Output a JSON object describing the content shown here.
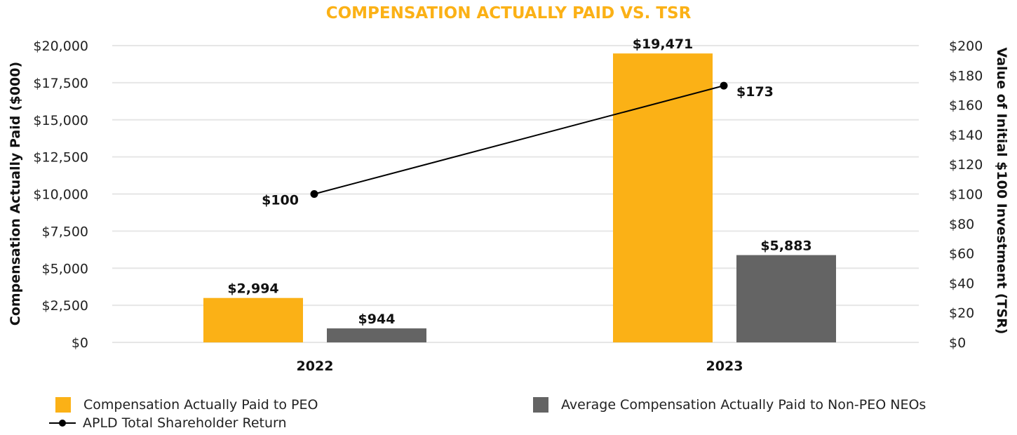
{
  "chart_data": {
    "type": "bar",
    "title": "COMPENSATION ACTUALLY PAID VS. TSR",
    "categories": [
      "2022",
      "2023"
    ],
    "ylabel": "Compensation Actually Paid ($000)",
    "y2label": "Value of Initial $100 Investment (TSR)",
    "ylim": [
      0,
      20000
    ],
    "y2lim": [
      0,
      200
    ],
    "yticks": [
      "$0",
      "$2,500",
      "$5,000",
      "$7,500",
      "$10,000",
      "$12,500",
      "$15,000",
      "$17,500",
      "$20,000"
    ],
    "y2ticks": [
      "$0",
      "$20",
      "$40",
      "$60",
      "$80",
      "$100",
      "$120",
      "$140",
      "$160",
      "$180",
      "$200"
    ],
    "grid": true,
    "legend_position": "bottom",
    "series": [
      {
        "name": "Compensation Actually Paid to PEO",
        "type": "bar",
        "axis": "left",
        "color": "#FBB116",
        "values": [
          2994,
          19471
        ],
        "labels": [
          "$2,994",
          "$19,471"
        ]
      },
      {
        "name": "Average Compensation Actually Paid to Non-PEO NEOs",
        "type": "bar",
        "axis": "left",
        "color": "#646464",
        "values": [
          944,
          5883
        ],
        "labels": [
          "$944",
          "$5,883"
        ]
      },
      {
        "name": "APLD Total Shareholder Return",
        "type": "line",
        "axis": "right",
        "color": "#000000",
        "values": [
          100,
          173
        ],
        "labels": [
          "$100",
          "$173"
        ]
      }
    ],
    "colors": {
      "title": "#FBB116",
      "grid": "#E6E6E6",
      "tick": "#222222"
    }
  }
}
